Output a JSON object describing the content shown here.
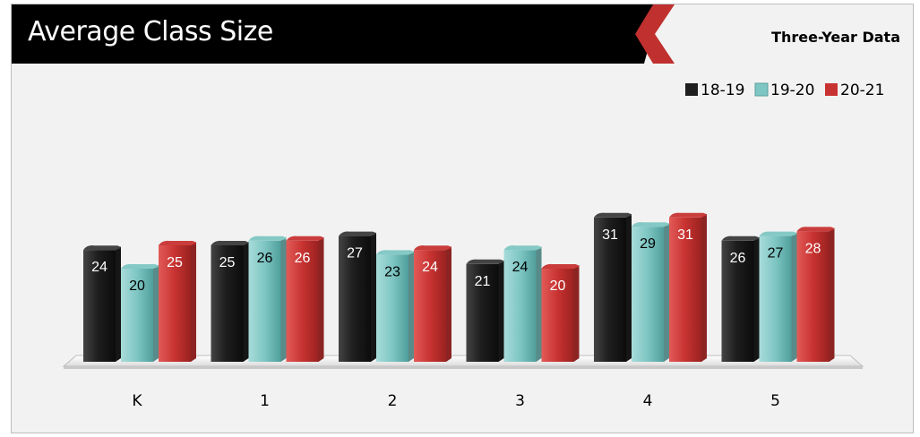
{
  "header": {
    "title": "Average Class Size",
    "subtitle": "Three-Year Data"
  },
  "colors": {
    "header_bg": "#000000",
    "accent": "#c0302f",
    "panel_bg": "#f2f2f2"
  },
  "chart_data": {
    "type": "bar",
    "title": "",
    "xlabel": "",
    "ylabel": "",
    "categories": [
      "K",
      "1",
      "2",
      "3",
      "4",
      "5"
    ],
    "ylim": [
      0,
      35
    ],
    "grid": false,
    "legend_position": "top-right",
    "data_labels": true,
    "series": [
      {
        "name": "18-19",
        "color": "#1f1f1f",
        "values": [
          24,
          25,
          27,
          21,
          31,
          26
        ]
      },
      {
        "name": "19-20",
        "color": "#7ec6c3",
        "values": [
          20,
          26,
          23,
          24,
          29,
          27
        ]
      },
      {
        "name": "20-21",
        "color": "#c73331",
        "values": [
          25,
          26,
          24,
          20,
          31,
          28
        ]
      }
    ]
  }
}
